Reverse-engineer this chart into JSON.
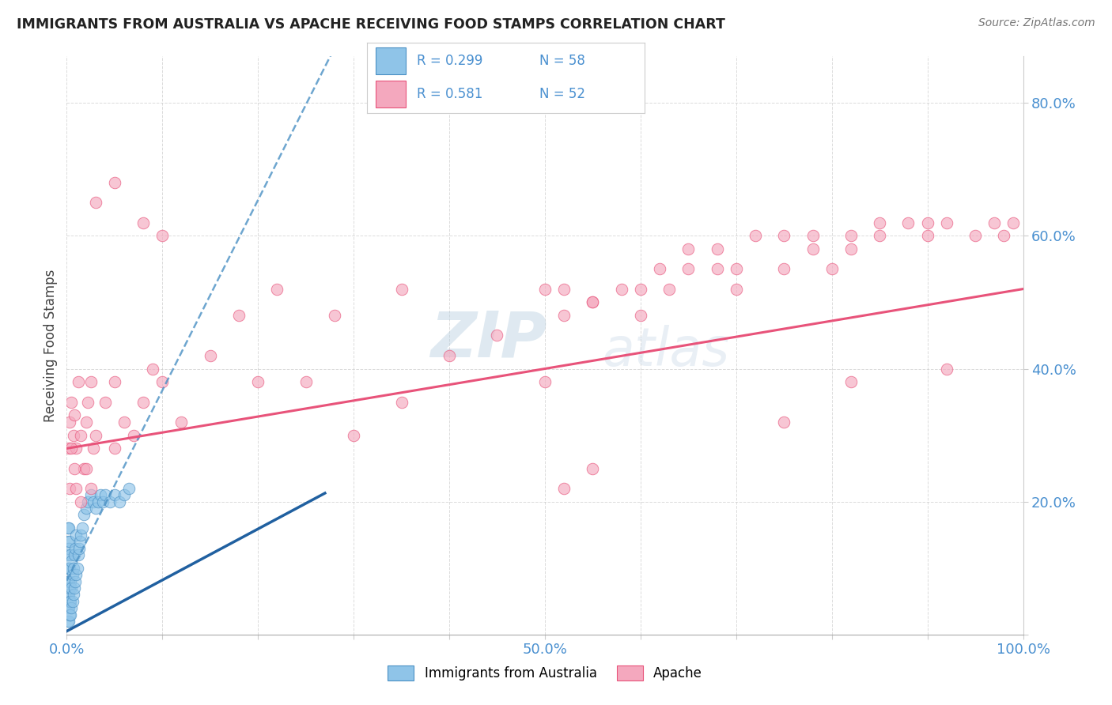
{
  "title": "IMMIGRANTS FROM AUSTRALIA VS APACHE RECEIVING FOOD STAMPS CORRELATION CHART",
  "source": "Source: ZipAtlas.com",
  "ylabel": "Receiving Food Stamps",
  "xlim": [
    0.0,
    1.0
  ],
  "ylim": [
    0.0,
    0.87
  ],
  "color_australia": "#8fc4e8",
  "color_apache": "#f4a8be",
  "trend_australia_color": "#4a90c4",
  "trend_apache_color": "#e8537a",
  "watermark_zip": "ZIP",
  "watermark_atlas": "atlas",
  "background_color": "#ffffff",
  "grid_color": "#cccccc",
  "australia_x": [
    0.001,
    0.001,
    0.001,
    0.001,
    0.001,
    0.001,
    0.001,
    0.001,
    0.002,
    0.002,
    0.002,
    0.002,
    0.002,
    0.002,
    0.002,
    0.003,
    0.003,
    0.003,
    0.003,
    0.003,
    0.004,
    0.004,
    0.004,
    0.004,
    0.005,
    0.005,
    0.005,
    0.006,
    0.006,
    0.007,
    0.007,
    0.008,
    0.008,
    0.009,
    0.009,
    0.01,
    0.01,
    0.011,
    0.012,
    0.013,
    0.014,
    0.015,
    0.016,
    0.018,
    0.02,
    0.022,
    0.025,
    0.028,
    0.03,
    0.033,
    0.035,
    0.038,
    0.04,
    0.045,
    0.05,
    0.055,
    0.06,
    0.065
  ],
  "australia_y": [
    0.02,
    0.04,
    0.06,
    0.08,
    0.1,
    0.12,
    0.14,
    0.16,
    0.02,
    0.04,
    0.06,
    0.08,
    0.1,
    0.13,
    0.16,
    0.03,
    0.05,
    0.07,
    0.1,
    0.14,
    0.03,
    0.05,
    0.08,
    0.12,
    0.04,
    0.07,
    0.11,
    0.05,
    0.09,
    0.06,
    0.1,
    0.07,
    0.12,
    0.08,
    0.13,
    0.09,
    0.15,
    0.1,
    0.12,
    0.13,
    0.14,
    0.15,
    0.16,
    0.18,
    0.19,
    0.2,
    0.21,
    0.2,
    0.19,
    0.2,
    0.21,
    0.2,
    0.21,
    0.2,
    0.21,
    0.2,
    0.21,
    0.22
  ],
  "apache_x": [
    0.002,
    0.003,
    0.005,
    0.007,
    0.008,
    0.01,
    0.012,
    0.015,
    0.018,
    0.02,
    0.022,
    0.025,
    0.028,
    0.03,
    0.04,
    0.05,
    0.06,
    0.07,
    0.08,
    0.09,
    0.1,
    0.12,
    0.15,
    0.18,
    0.2,
    0.25,
    0.3,
    0.35,
    0.4,
    0.45,
    0.5,
    0.52,
    0.55,
    0.58,
    0.6,
    0.63,
    0.65,
    0.68,
    0.7,
    0.72,
    0.75,
    0.78,
    0.8,
    0.82,
    0.85,
    0.88,
    0.9,
    0.92,
    0.95,
    0.97,
    0.98,
    0.99
  ],
  "apache_y": [
    0.28,
    0.32,
    0.35,
    0.3,
    0.33,
    0.28,
    0.38,
    0.3,
    0.25,
    0.32,
    0.35,
    0.38,
    0.28,
    0.3,
    0.35,
    0.38,
    0.32,
    0.3,
    0.35,
    0.4,
    0.38,
    0.32,
    0.42,
    0.48,
    0.38,
    0.38,
    0.3,
    0.35,
    0.42,
    0.45,
    0.38,
    0.48,
    0.5,
    0.52,
    0.48,
    0.52,
    0.55,
    0.58,
    0.55,
    0.6,
    0.6,
    0.58,
    0.55,
    0.58,
    0.6,
    0.62,
    0.6,
    0.62,
    0.6,
    0.62,
    0.6,
    0.62
  ],
  "apache_outlier_x": [
    0.03,
    0.05,
    0.08,
    0.1,
    0.22,
    0.28,
    0.35,
    0.5,
    0.52,
    0.55,
    0.6,
    0.62,
    0.65,
    0.68,
    0.7,
    0.75,
    0.78,
    0.82,
    0.85,
    0.9
  ],
  "apache_outlier_y": [
    0.65,
    0.68,
    0.62,
    0.6,
    0.52,
    0.48,
    0.52,
    0.52,
    0.52,
    0.5,
    0.52,
    0.55,
    0.58,
    0.55,
    0.52,
    0.55,
    0.6,
    0.6,
    0.62,
    0.62
  ],
  "apache_low_x": [
    0.003,
    0.005,
    0.008,
    0.01,
    0.015,
    0.02,
    0.025,
    0.05,
    0.52,
    0.55,
    0.75,
    0.82,
    0.92
  ],
  "apache_low_y": [
    0.22,
    0.28,
    0.25,
    0.22,
    0.2,
    0.25,
    0.22,
    0.28,
    0.22,
    0.25,
    0.32,
    0.38,
    0.4
  ]
}
